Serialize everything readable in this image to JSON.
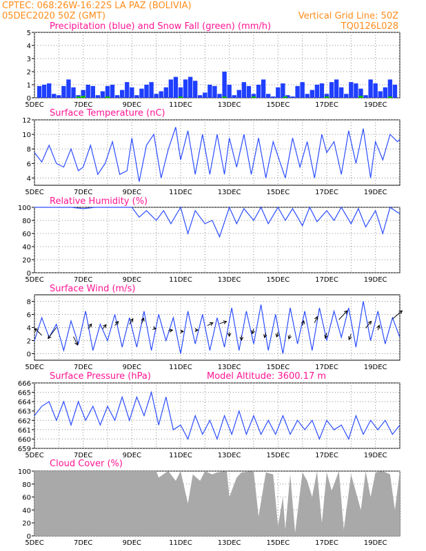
{
  "header": {
    "line1": "CPTEC:   068:26W-16:22S  LA PAZ (BOLIVIA)",
    "line2": "05DEC2020 50Z (GMT)",
    "right1": "Vertical Grid Line: 50Z",
    "right2": "TQ0126L028"
  },
  "colors": {
    "header": "#ff8c1a",
    "title": "#ff1493",
    "precip": "#1f3fff",
    "snow": "#00bb00",
    "line": "#2a4bff",
    "cloud": "#a9a9a9",
    "grid": "#888888"
  },
  "x_categories": [
    "5DEC",
    "7DEC",
    "9DEC",
    "11DEC",
    "13DEC",
    "15DEC",
    "17DEC",
    "19DEC"
  ],
  "x_days": [
    5,
    7,
    9,
    11,
    13,
    15,
    17,
    19
  ],
  "x_range": [
    5,
    20
  ],
  "chart_data": [
    {
      "id": "precip",
      "type": "bar",
      "title": "Precipitation (blue) and Snow Fall (green) (mm/h)",
      "ylim": [
        0,
        5
      ],
      "yticks": [
        0,
        1,
        2,
        3,
        4,
        5
      ],
      "series": [
        {
          "name": "Precipitation",
          "color": "#1f3fff",
          "x": [
            5.2,
            5.4,
            5.6,
            5.8,
            6.0,
            6.2,
            6.4,
            6.6,
            6.8,
            7.0,
            7.2,
            7.4,
            7.6,
            7.8,
            8.0,
            8.2,
            8.4,
            8.6,
            8.8,
            9.0,
            9.2,
            9.4,
            9.6,
            9.8,
            10.0,
            10.2,
            10.4,
            10.6,
            10.8,
            11.0,
            11.2,
            11.4,
            11.6,
            11.8,
            12.0,
            12.2,
            12.4,
            12.6,
            12.8,
            13.0,
            13.2,
            13.4,
            13.6,
            13.8,
            14.0,
            14.2,
            14.4,
            14.6,
            14.8,
            15.0,
            15.2,
            15.4,
            15.6,
            15.8,
            16.0,
            16.2,
            16.4,
            16.6,
            16.8,
            17.0,
            17.2,
            17.4,
            17.6,
            17.8,
            18.0,
            18.2,
            18.4,
            18.6,
            18.8,
            19.0,
            19.2,
            19.4,
            19.6,
            19.8
          ],
          "values": [
            0.9,
            1.0,
            1.1,
            0.3,
            0.2,
            0.9,
            1.4,
            0.8,
            0.2,
            0.6,
            1.0,
            0.9,
            0.2,
            0.5,
            0.9,
            1.0,
            0.2,
            0.6,
            1.2,
            0.8,
            0.2,
            0.7,
            1.0,
            1.2,
            0.3,
            0.5,
            0.8,
            1.4,
            1.6,
            0.8,
            1.4,
            1.6,
            1.3,
            0.2,
            0.4,
            1.0,
            0.9,
            0.3,
            2.0,
            1.0,
            0.2,
            0.6,
            1.2,
            0.9,
            0.3,
            1.0,
            1.4,
            0.3,
            0.1,
            0.8,
            1.1,
            0.2,
            0.1,
            0.9,
            1.2,
            0.3,
            0.6,
            1.0,
            1.1,
            0.3,
            1.2,
            1.4,
            0.8,
            0.3,
            1.2,
            1.1,
            0.7,
            0.2,
            1.4,
            1.1,
            0.5,
            0.8,
            1.4,
            1.0
          ]
        },
        {
          "name": "Snow Fall",
          "color": "#00bb00",
          "x": [
            6.8,
            7.0,
            8.0,
            11.0,
            12.8,
            14.0,
            15.3,
            17.0,
            18.4,
            19.6
          ],
          "values": [
            0.1,
            0.15,
            0.1,
            0.1,
            0.1,
            0.1,
            0.1,
            0.1,
            0.15,
            0.1
          ]
        }
      ]
    },
    {
      "id": "temp",
      "type": "line",
      "title": "Surface Temperature (nC)",
      "ylim": [
        3,
        12
      ],
      "yticks": [
        4,
        6,
        8,
        10,
        12
      ],
      "x": [
        5.0,
        5.3,
        5.6,
        5.9,
        6.2,
        6.5,
        6.8,
        7.0,
        7.3,
        7.6,
        7.9,
        8.2,
        8.5,
        8.8,
        9.0,
        9.3,
        9.6,
        9.9,
        10.2,
        10.5,
        10.8,
        11.0,
        11.3,
        11.6,
        11.9,
        12.2,
        12.5,
        12.8,
        13.0,
        13.3,
        13.6,
        13.9,
        14.2,
        14.5,
        14.8,
        15.0,
        15.3,
        15.6,
        15.9,
        16.2,
        16.5,
        16.8,
        17.0,
        17.3,
        17.6,
        17.9,
        18.2,
        18.5,
        18.8,
        19.0,
        19.3,
        19.6,
        19.9,
        20.0
      ],
      "values": [
        7.5,
        6.2,
        8.5,
        6.0,
        5.5,
        8.0,
        5.0,
        5.5,
        8.5,
        4.5,
        6.0,
        9.0,
        4.5,
        5.0,
        9.5,
        3.5,
        8.5,
        10.0,
        4.0,
        8.0,
        11.0,
        6.5,
        10.5,
        4.5,
        10.0,
        4.5,
        10.0,
        4.5,
        9.5,
        5.5,
        10.0,
        4.5,
        9.5,
        4.0,
        9.0,
        7.0,
        4.0,
        9.5,
        5.5,
        9.0,
        4.0,
        10.0,
        7.5,
        9.0,
        4.5,
        10.5,
        6.0,
        10.8,
        4.0,
        9.0,
        6.5,
        10.0,
        9.0,
        9.3
      ]
    },
    {
      "id": "humidity",
      "type": "line",
      "title": "Relative Humidity (%)",
      "ylim": [
        0,
        100
      ],
      "yticks": [
        0,
        20,
        40,
        60,
        80,
        100
      ],
      "x": [
        5.0,
        5.5,
        6.0,
        6.5,
        7.0,
        7.5,
        8.0,
        8.5,
        9.0,
        9.3,
        9.6,
        10.0,
        10.3,
        10.6,
        11.0,
        11.3,
        11.6,
        12.0,
        12.3,
        12.6,
        13.0,
        13.3,
        13.6,
        14.0,
        14.3,
        14.6,
        15.0,
        15.3,
        15.6,
        16.0,
        16.3,
        16.6,
        17.0,
        17.3,
        17.6,
        18.0,
        18.3,
        18.6,
        19.0,
        19.3,
        19.6,
        20.0
      ],
      "values": [
        100,
        100,
        100,
        100,
        98,
        100,
        100,
        100,
        100,
        85,
        95,
        80,
        95,
        75,
        100,
        60,
        95,
        75,
        80,
        55,
        100,
        75,
        98,
        80,
        100,
        75,
        100,
        80,
        98,
        72,
        100,
        78,
        95,
        80,
        100,
        75,
        98,
        70,
        95,
        60,
        100,
        90
      ]
    },
    {
      "id": "wind",
      "type": "line",
      "title": "Surface Wind (m/s)",
      "ylim": [
        -1,
        9
      ],
      "yticks": [
        0,
        2,
        4,
        6,
        8
      ],
      "x": [
        5.0,
        5.3,
        5.6,
        5.9,
        6.2,
        6.5,
        6.8,
        7.1,
        7.4,
        7.7,
        8.0,
        8.3,
        8.6,
        8.9,
        9.2,
        9.5,
        9.8,
        10.1,
        10.4,
        10.7,
        11.0,
        11.3,
        11.6,
        11.9,
        12.2,
        12.5,
        12.8,
        13.1,
        13.4,
        13.7,
        14.0,
        14.3,
        14.6,
        14.9,
        15.2,
        15.5,
        15.8,
        16.1,
        16.4,
        16.7,
        17.0,
        17.3,
        17.6,
        17.9,
        18.2,
        18.5,
        18.8,
        19.1,
        19.4,
        19.7,
        20.0
      ],
      "values": [
        2.0,
        5.5,
        2.5,
        4.5,
        0.5,
        5.0,
        1.5,
        6.5,
        0.5,
        4.5,
        2.0,
        6.0,
        1.0,
        5.5,
        1.0,
        6.5,
        0.5,
        6.0,
        2.0,
        5.5,
        0.0,
        6.5,
        1.5,
        6.0,
        0.5,
        5.5,
        1.0,
        7.0,
        0.5,
        6.5,
        1.5,
        7.5,
        0.5,
        6.0,
        0.0,
        7.0,
        1.5,
        6.5,
        0.5,
        7.0,
        2.0,
        6.5,
        2.5,
        7.0,
        1.0,
        8.0,
        2.0,
        6.5,
        1.5,
        5.5,
        2.5
      ],
      "arrows_x": [
        5.3,
        5.9,
        6.6,
        7.2,
        7.8,
        8.3,
        8.9,
        9.4,
        9.9,
        10.5,
        11.0,
        11.6,
        12.1,
        12.6,
        13.0,
        13.5,
        14.0,
        14.5,
        15.0,
        15.5,
        16.0,
        16.5,
        17.0,
        17.5,
        18.0,
        18.6,
        19.1,
        19.7
      ],
      "arrows_y": [
        2.8,
        4.0,
        2.6,
        3.8,
        3.8,
        4.3,
        4.5,
        4.6,
        3.9,
        3.5,
        3.4,
        3.6,
        4.3,
        4.6,
        3.3,
        2.8,
        3.8,
        3.2,
        3.3,
        2.9,
        4.3,
        4.7,
        3.2,
        5.2,
        3.0,
        3.9,
        3.6,
        5.3
      ],
      "arrows_dx": [
        -1,
        -1.2,
        0.6,
        0.5,
        0.5,
        0.5,
        0.5,
        0.3,
        0.3,
        0.6,
        0.4,
        0.4,
        0.8,
        1.0,
        0.0,
        0.0,
        -0.2,
        -0.2,
        -0.2,
        -0.2,
        0.2,
        0.4,
        -0.2,
        1.2,
        -0.3,
        0.8,
        0.2,
        1.4
      ],
      "arrows_dy": [
        1,
        -1.6,
        -1.2,
        0.7,
        0.6,
        0.6,
        0.8,
        0.8,
        -0.1,
        0.1,
        0.0,
        0.0,
        0.4,
        0.3,
        -0.6,
        -0.7,
        -0.7,
        -0.7,
        -0.7,
        -0.6,
        0.7,
        0.9,
        -0.8,
        1.3,
        -0.8,
        1.0,
        0.7,
        1.2
      ]
    },
    {
      "id": "pressure",
      "type": "line",
      "title": "Surface Pressure (hPa)",
      "extra_label": "Model Altitude: 3600.17 m",
      "ylim": [
        659,
        666
      ],
      "yticks": [
        659,
        660,
        661,
        662,
        663,
        664,
        665,
        666
      ],
      "x": [
        5.0,
        5.3,
        5.6,
        5.9,
        6.2,
        6.5,
        6.8,
        7.1,
        7.4,
        7.7,
        8.0,
        8.3,
        8.6,
        8.9,
        9.2,
        9.5,
        9.8,
        10.1,
        10.4,
        10.7,
        11.0,
        11.3,
        11.6,
        11.9,
        12.2,
        12.5,
        12.8,
        13.1,
        13.4,
        13.7,
        14.0,
        14.3,
        14.6,
        14.9,
        15.2,
        15.5,
        15.8,
        16.1,
        16.4,
        16.7,
        17.0,
        17.3,
        17.6,
        17.9,
        18.2,
        18.5,
        18.8,
        19.1,
        19.4,
        19.7,
        20.0
      ],
      "values": [
        662.5,
        663.5,
        664.0,
        662.0,
        664.0,
        661.5,
        664.0,
        662.0,
        663.5,
        661.5,
        663.5,
        662.0,
        664.5,
        662.0,
        664.5,
        662.5,
        665.0,
        661.5,
        664.5,
        661.0,
        661.5,
        660.0,
        662.5,
        660.5,
        662.0,
        660.0,
        662.5,
        660.5,
        663.0,
        660.5,
        662.5,
        660.5,
        662.0,
        660.5,
        662.5,
        660.5,
        662.0,
        661.0,
        662.0,
        660.0,
        662.0,
        661.0,
        661.5,
        660.0,
        662.5,
        660.5,
        662.0,
        661.0,
        662.0,
        660.5,
        661.5
      ]
    },
    {
      "id": "cloud",
      "type": "area",
      "title": "Cloud Cover (%)",
      "ylim": [
        0,
        100
      ],
      "yticks": [
        0,
        20,
        40,
        60,
        80,
        100
      ],
      "x": [
        5.0,
        10.0,
        10.1,
        10.4,
        10.5,
        10.8,
        11.0,
        11.3,
        11.5,
        11.8,
        12.0,
        12.3,
        12.5,
        12.9,
        13.0,
        13.3,
        13.5,
        14.0,
        14.2,
        14.5,
        14.8,
        15.0,
        15.2,
        15.3,
        15.5,
        15.7,
        16.0,
        16.2,
        16.4,
        16.6,
        16.8,
        17.0,
        17.2,
        17.5,
        17.7,
        18.0,
        18.4,
        18.6,
        18.8,
        19.0,
        19.3,
        19.6,
        19.8,
        20.0
      ],
      "values": [
        100,
        100,
        90,
        98,
        100,
        85,
        100,
        50,
        95,
        85,
        100,
        95,
        98,
        100,
        60,
        90,
        98,
        100,
        30,
        98,
        95,
        15,
        60,
        10,
        95,
        5,
        98,
        85,
        60,
        100,
        20,
        98,
        70,
        100,
        10,
        95,
        40,
        100,
        60,
        98,
        100,
        95,
        40,
        100
      ]
    }
  ]
}
